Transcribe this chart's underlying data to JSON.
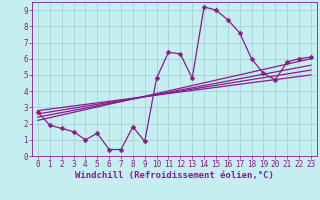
{
  "xlabel": "Windchill (Refroidissement éolien,°C)",
  "bg_color": "#c5eef0",
  "line_color": "#8b1a8b",
  "grid_color": "#9ecdd4",
  "xlim": [
    -0.5,
    23.5
  ],
  "ylim": [
    0,
    9.5
  ],
  "xticks": [
    0,
    1,
    2,
    3,
    4,
    5,
    6,
    7,
    8,
    9,
    10,
    11,
    12,
    13,
    14,
    15,
    16,
    17,
    18,
    19,
    20,
    21,
    22,
    23
  ],
  "yticks": [
    0,
    1,
    2,
    3,
    4,
    5,
    6,
    7,
    8,
    9
  ],
  "main_x": [
    0,
    1,
    2,
    3,
    4,
    5,
    6,
    7,
    8,
    9,
    10,
    11,
    12,
    13,
    14,
    15,
    16,
    17,
    18,
    19,
    20,
    21,
    22,
    23
  ],
  "main_y": [
    2.7,
    1.9,
    1.7,
    1.5,
    1.0,
    1.4,
    0.4,
    0.4,
    1.8,
    0.9,
    4.8,
    6.4,
    6.3,
    4.8,
    9.2,
    9.0,
    8.4,
    7.6,
    6.0,
    5.1,
    4.7,
    5.8,
    6.0,
    6.1
  ],
  "linear_lines": [
    {
      "x0": 0,
      "y0": 2.2,
      "x1": 23,
      "y1": 6.0
    },
    {
      "x0": 0,
      "y0": 2.4,
      "x1": 23,
      "y1": 5.6
    },
    {
      "x0": 0,
      "y0": 2.6,
      "x1": 23,
      "y1": 5.3
    },
    {
      "x0": 0,
      "y0": 2.8,
      "x1": 23,
      "y1": 5.0
    }
  ],
  "marker": "D",
  "markersize": 2.5,
  "linewidth": 0.9,
  "xlabel_fontsize": 6.5,
  "tick_fontsize": 5.5
}
